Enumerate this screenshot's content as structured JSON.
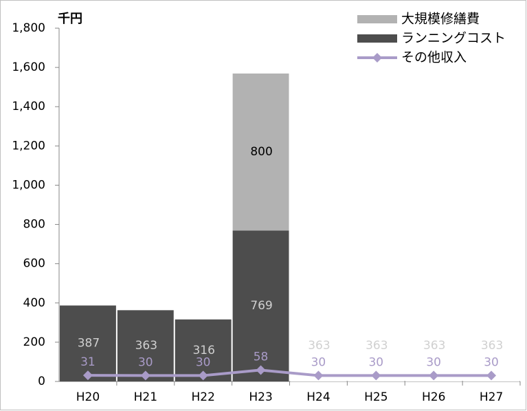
{
  "chart_data": {
    "type": "bar",
    "stacked": true,
    "unit_label": "千円",
    "categories": [
      "H20",
      "H21",
      "H22",
      "H23",
      "H24",
      "H25",
      "H26",
      "H27"
    ],
    "series": [
      {
        "name": "ランニングコスト",
        "color": "#4d4d4d",
        "bar_colors": [
          "#4d4d4d",
          "#4d4d4d",
          "#4d4d4d",
          "#4d4d4d",
          "#ffffff",
          "#ffffff",
          "#ffffff",
          "#ffffff"
        ],
        "label_color": "#d0d0d0",
        "values": [
          387,
          363,
          316,
          769,
          363,
          363,
          363,
          363
        ]
      },
      {
        "name": "大規模修繕費",
        "color": "#b2b2b2",
        "label_color": "#000000",
        "values": [
          null,
          null,
          null,
          800,
          null,
          null,
          null,
          null
        ]
      },
      {
        "name": "その他収入",
        "type": "line",
        "color": "#a99bc8",
        "label_color": "#a99bc8",
        "values": [
          31,
          30,
          30,
          58,
          30,
          30,
          30,
          30
        ]
      }
    ],
    "ylim": [
      0,
      1800
    ],
    "yticks": [
      0,
      200,
      400,
      600,
      800,
      {
        "value": 1000,
        "label": "1,000"
      },
      {
        "value": 1200,
        "label": "1,200"
      },
      {
        "value": 1400,
        "label": "1,400"
      },
      {
        "value": 1600,
        "label": "1,600"
      },
      {
        "value": 1800,
        "label": "1,800"
      }
    ],
    "grid": false,
    "legend": "top-right"
  }
}
